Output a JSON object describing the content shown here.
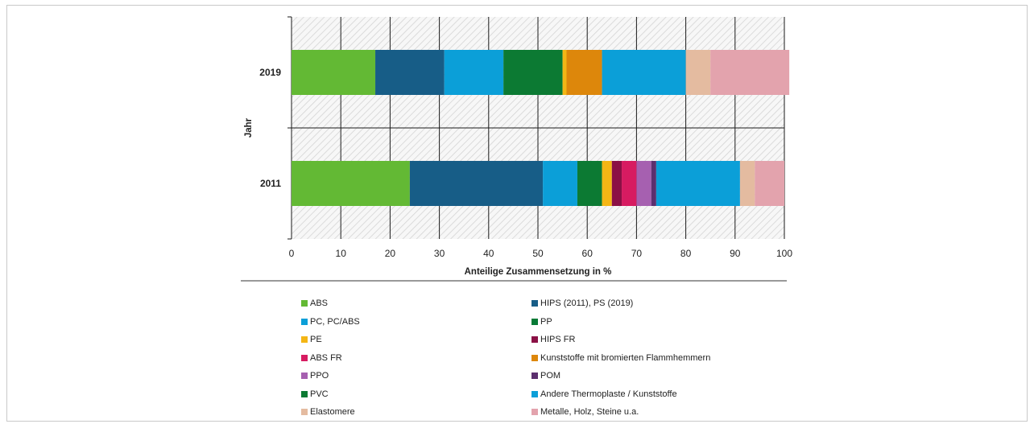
{
  "chart_data": {
    "type": "bar",
    "orientation": "horizontal",
    "stacked": true,
    "title": "",
    "xlabel": "Anteilige Zusammensetzung in %",
    "ylabel": "Jahr",
    "xlim": [
      0,
      100
    ],
    "xticks": [
      0,
      10,
      20,
      30,
      40,
      50,
      60,
      70,
      80,
      90,
      100
    ],
    "grid": true,
    "legend_position": "bottom",
    "categories": [
      "2019",
      "2011"
    ],
    "series": [
      {
        "name": "ABS",
        "color": "#63b934",
        "values": [
          17,
          24
        ]
      },
      {
        "name": "HIPS (2011), PS (2019)",
        "color": "#175d87",
        "values": [
          14,
          27
        ]
      },
      {
        "name": "PC, PC/ABS",
        "color": "#0b9fd8",
        "values": [
          12,
          7
        ]
      },
      {
        "name": "PP",
        "color": "#077a36",
        "values": [
          0,
          0
        ]
      },
      {
        "name": "PVC",
        "color": "#0c7a33",
        "values": [
          12,
          5
        ]
      },
      {
        "name": "PE",
        "color": "#f4b615",
        "values": [
          0.8,
          2
        ]
      },
      {
        "name": "HIPS FR",
        "color": "#8b1045",
        "values": [
          0,
          2
        ]
      },
      {
        "name": "ABS FR",
        "color": "#d71b61",
        "values": [
          0,
          3
        ]
      },
      {
        "name": "PPO",
        "color": "#a660b0",
        "values": [
          0,
          3
        ]
      },
      {
        "name": "POM",
        "color": "#5c2f6e",
        "values": [
          0,
          1
        ]
      },
      {
        "name": "Kunststoffe mit bromierten Flammhemmern",
        "color": "#dd870b",
        "values": [
          7.2,
          0
        ]
      },
      {
        "name": "Andere Thermoplaste / Kunststoffe",
        "color": "#0b9fd8",
        "values": [
          17,
          17
        ]
      },
      {
        "name": "Elastomere",
        "color": "#e4bba0",
        "values": [
          5,
          3
        ]
      },
      {
        "name": "Metalle, Holz, Steine u.a.",
        "color": "#e3a3ad",
        "values": [
          16,
          6
        ]
      }
    ],
    "legend_order": [
      "ABS",
      "HIPS (2011), PS (2019)",
      "PC, PC/ABS",
      "PP",
      "PE",
      "HIPS FR",
      "ABS FR",
      "Kunststoffe mit bromierten Flammhemmern",
      "PPO",
      "POM",
      "PVC",
      "Andere Thermoplaste / Kunststoffe",
      "Elastomere",
      "Metalle, Holz, Steine u.a."
    ]
  }
}
